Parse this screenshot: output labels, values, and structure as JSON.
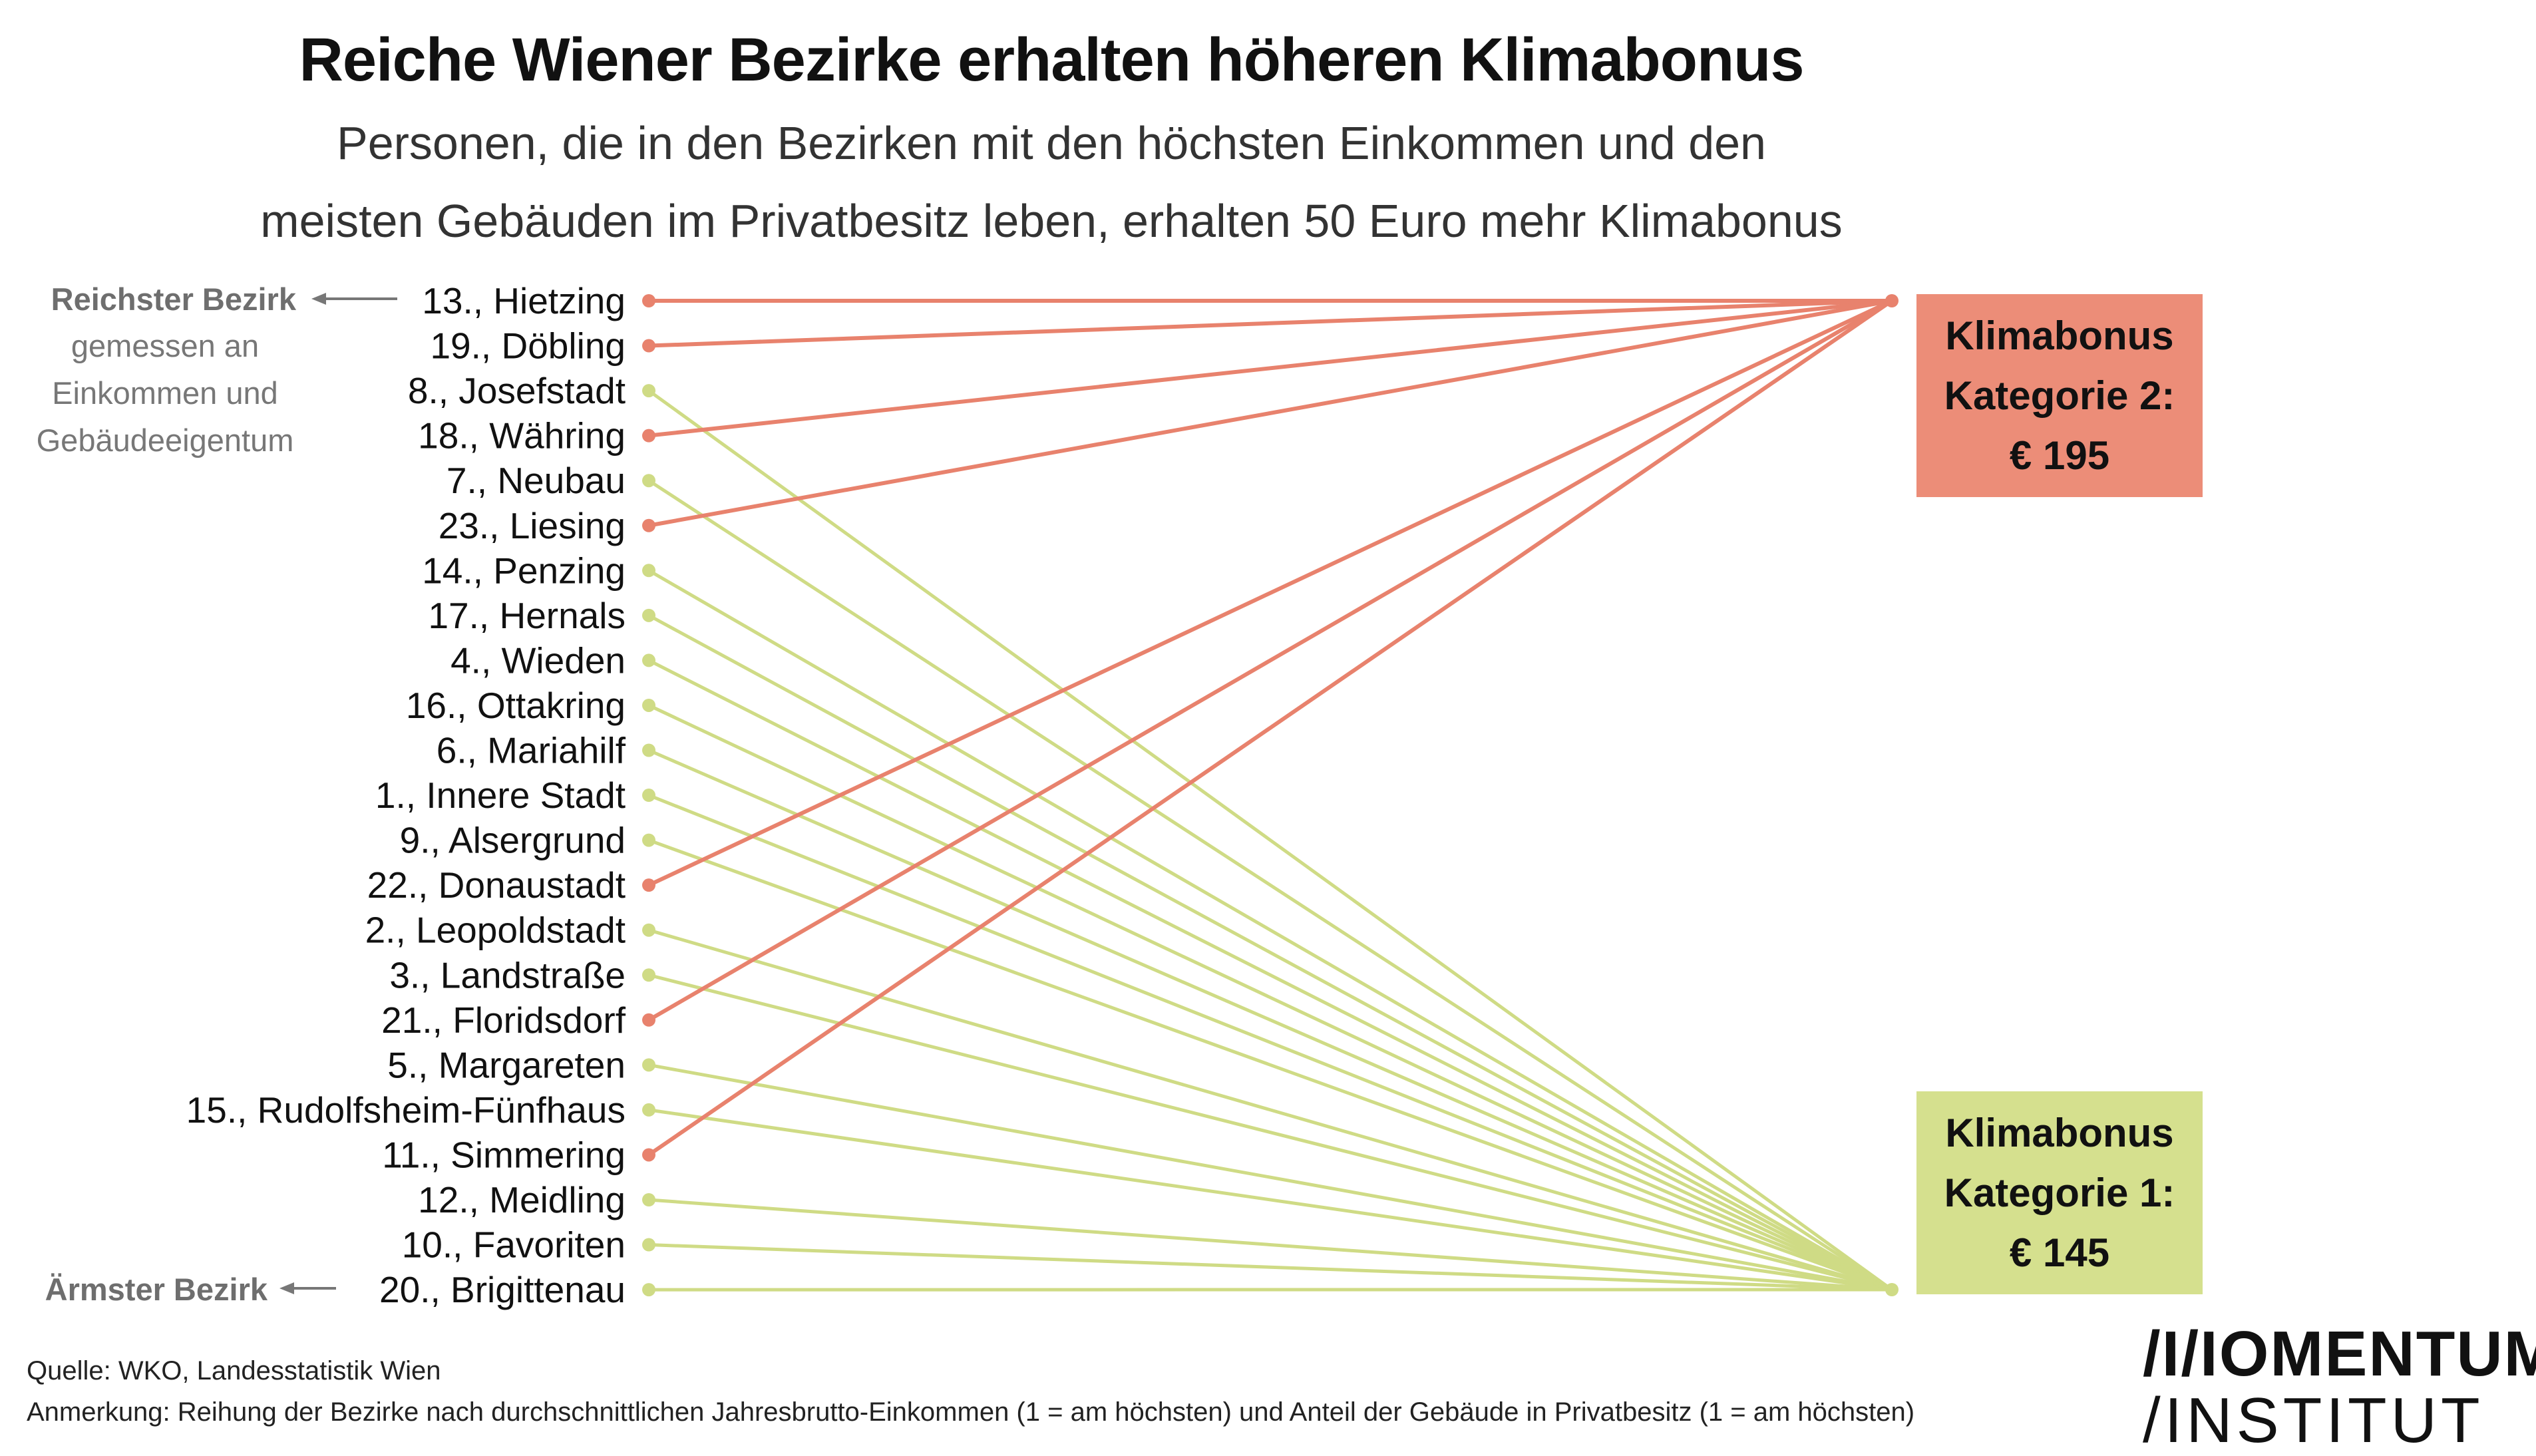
{
  "title": "Reiche Wiener Bezirke erhalten höheren Klimabonus",
  "subtitle_line1": "Personen, die in den Bezirken mit den höchsten Einkommen und den",
  "subtitle_line2": "meisten Gebäuden im Privatbesitz leben, erhalten 50 Euro mehr Klimabonus",
  "colors": {
    "category2": "#ec8d78",
    "category2_line": "#e8826d",
    "category1": "#d5e08e",
    "category1_line": "#cfdb85"
  },
  "districts": [
    {
      "label": "13., Hietzing",
      "category": 2
    },
    {
      "label": "19., Döbling",
      "category": 2
    },
    {
      "label": "8., Josefstadt",
      "category": 1
    },
    {
      "label": "18., Währing",
      "category": 2
    },
    {
      "label": "7., Neubau",
      "category": 1
    },
    {
      "label": "23., Liesing",
      "category": 2
    },
    {
      "label": "14., Penzing",
      "category": 1
    },
    {
      "label": "17., Hernals",
      "category": 1
    },
    {
      "label": "4., Wieden",
      "category": 1
    },
    {
      "label": "16., Ottakring",
      "category": 1
    },
    {
      "label": "6., Mariahilf",
      "category": 1
    },
    {
      "label": "1., Innere Stadt",
      "category": 1
    },
    {
      "label": "9., Alsergrund",
      "category": 1
    },
    {
      "label": "22., Donaustadt",
      "category": 2
    },
    {
      "label": "2., Leopoldstadt",
      "category": 1
    },
    {
      "label": "3., Landstraße",
      "category": 1
    },
    {
      "label": "21., Floridsdorf",
      "category": 2
    },
    {
      "label": "5., Margareten",
      "category": 1
    },
    {
      "label": "15., Rudolfsheim-Fünfhaus",
      "category": 1
    },
    {
      "label": "11., Simmering",
      "category": 2
    },
    {
      "label": "12., Meidling",
      "category": 1
    },
    {
      "label": "10., Favoriten",
      "category": 1
    },
    {
      "label": "20., Brigittenau",
      "category": 1
    }
  ],
  "annotations": {
    "richest_line1": "Reichster Bezirk",
    "richest_line2": "gemessen an",
    "richest_line3": "Einkommen und",
    "richest_line4": "Gebäudeeigentum",
    "poorest": "Ärmster Bezirk"
  },
  "categories": {
    "cat2": {
      "line1": "Klimabonus",
      "line2": "Kategorie 2:",
      "amount": "€ 195"
    },
    "cat1": {
      "line1": "Klimabonus",
      "line2": "Kategorie 1:",
      "amount": "€ 145"
    }
  },
  "footer": {
    "source": "Quelle: WKO, Landesstatistik Wien",
    "note": "Anmerkung: Reihung der Bezirke nach durchschnittlichen Jahresbrutto-Einkommen (1 = am höchsten) und Anteil der Gebäude in Privatbesitz (1 = am höchsten)"
  },
  "logo": {
    "line1": "/I/IOMENTUM",
    "line2": "/INSTITUT"
  }
}
